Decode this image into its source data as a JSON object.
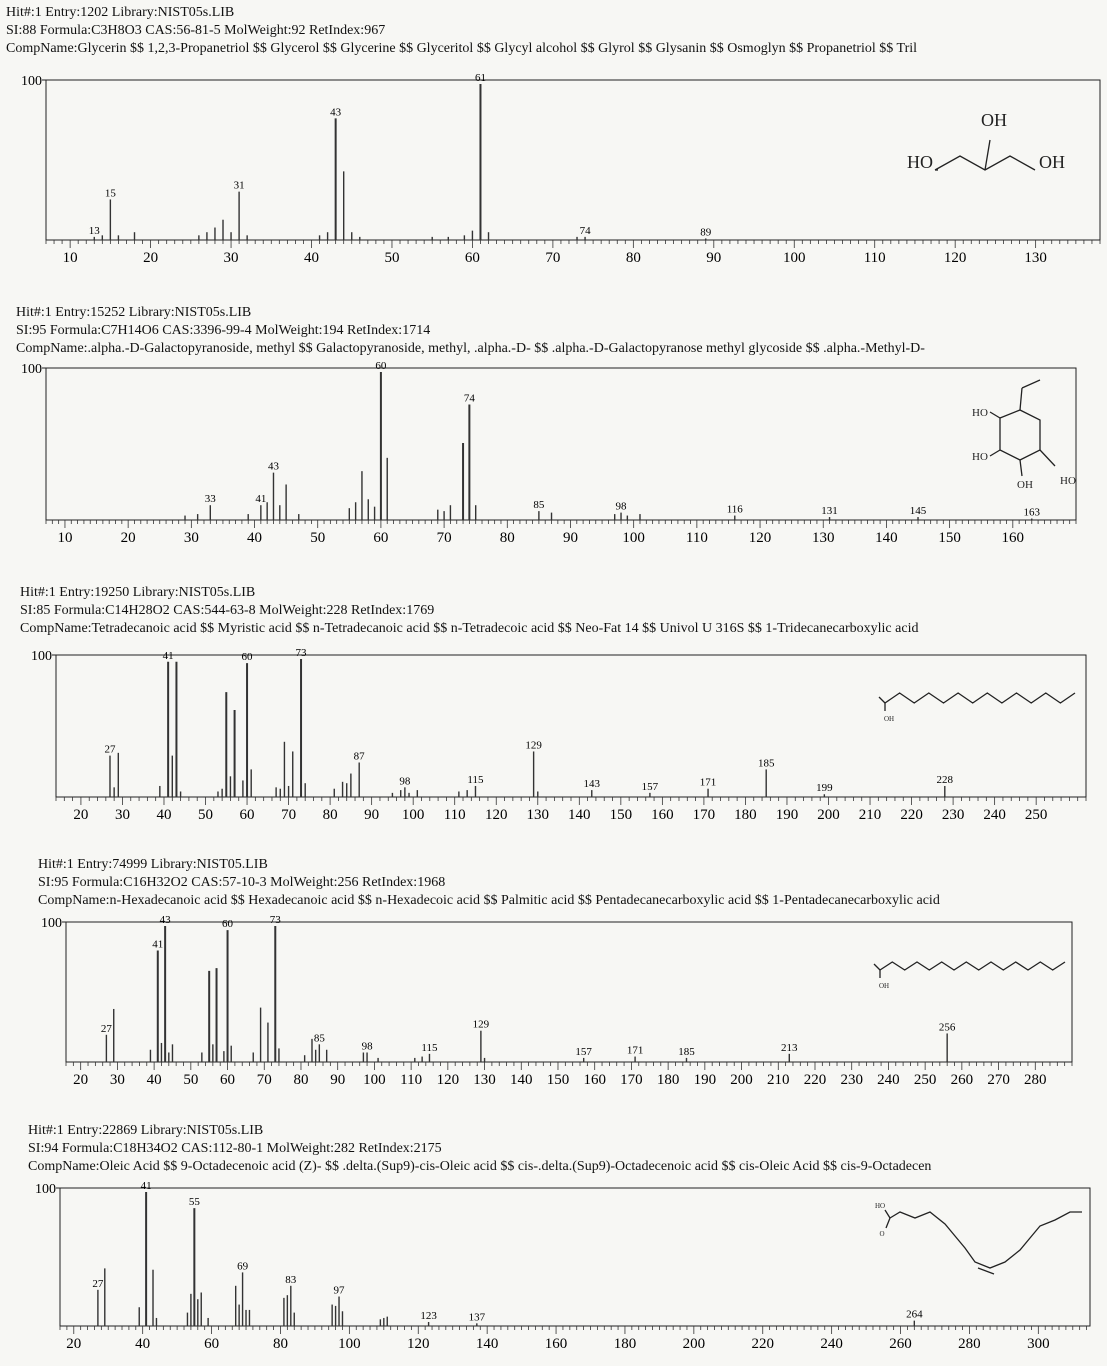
{
  "chart_data": [
    {
      "type": "bar",
      "header": {
        "line1": "Hit#:1  Entry:1202  Library:NIST05s.LIB",
        "line2": "SI:88  Formula:C3H8O3  CAS:56-81-5  MolWeight:92  RetIndex:967",
        "line3": "CompName:Glycerin $$ 1,2,3-Propanetriol $$ Glycerol $$ Glycerine $$ Glyceritol $$ Glycyl alcohol $$ Glyrol $$ Glysanin $$ Osmoglyn $$ Propanetriol $$ Tril"
      },
      "ylabel": "100",
      "xlim": [
        7,
        138
      ],
      "ylim": [
        0,
        100
      ],
      "x_ticks": [
        10,
        20,
        30,
        40,
        50,
        60,
        70,
        80,
        90,
        100,
        110,
        120,
        130
      ],
      "peaks": [
        [
          13,
          2
        ],
        [
          14,
          3
        ],
        [
          15,
          26
        ],
        [
          16,
          3
        ],
        [
          18,
          5
        ],
        [
          26,
          3
        ],
        [
          27,
          5
        ],
        [
          28,
          8
        ],
        [
          29,
          13
        ],
        [
          30,
          5
        ],
        [
          31,
          31
        ],
        [
          32,
          3
        ],
        [
          41,
          3
        ],
        [
          42,
          5
        ],
        [
          43,
          78
        ],
        [
          44,
          44
        ],
        [
          45,
          5
        ],
        [
          46,
          2
        ],
        [
          55,
          2
        ],
        [
          57,
          2
        ],
        [
          59,
          3
        ],
        [
          60,
          6
        ],
        [
          61,
          100
        ],
        [
          62,
          5
        ],
        [
          73,
          2
        ],
        [
          74,
          2
        ],
        [
          89,
          1
        ]
      ],
      "peak_labels": [
        [
          13,
          "13"
        ],
        [
          15,
          "15"
        ],
        [
          31,
          "31"
        ],
        [
          43,
          "43"
        ],
        [
          61,
          "61"
        ],
        [
          74,
          "74"
        ],
        [
          89,
          "89"
        ]
      ],
      "structure": {
        "kind": "glycerol",
        "labels": [
          "OH",
          "HO",
          "OH"
        ]
      }
    },
    {
      "type": "bar",
      "header": {
        "line1": "Hit#:1  Entry:15252  Library:NIST05s.LIB",
        "line2": "SI:95  Formula:C7H14O6  CAS:3396-99-4  MolWeight:194  RetIndex:1714",
        "line3": "CompName:.alpha.-D-Galactopyranoside, methyl $$ Galactopyranoside, methyl, .alpha.-D- $$ .alpha.-D-Galactopyranose methyl glycoside $$ .alpha.-Methyl-D-"
      },
      "ylabel": "100",
      "xlim": [
        7,
        170
      ],
      "ylim": [
        0,
        100
      ],
      "x_ticks": [
        10,
        20,
        30,
        40,
        50,
        60,
        70,
        80,
        90,
        100,
        110,
        120,
        130,
        140,
        150,
        160
      ],
      "peaks": [
        [
          29,
          3
        ],
        [
          31,
          4
        ],
        [
          33,
          10
        ],
        [
          39,
          4
        ],
        [
          41,
          10
        ],
        [
          42,
          12
        ],
        [
          43,
          32
        ],
        [
          44,
          10
        ],
        [
          45,
          24
        ],
        [
          47,
          4
        ],
        [
          55,
          8
        ],
        [
          56,
          12
        ],
        [
          57,
          33
        ],
        [
          58,
          14
        ],
        [
          59,
          9
        ],
        [
          60,
          100
        ],
        [
          61,
          42
        ],
        [
          69,
          7
        ],
        [
          70,
          6
        ],
        [
          71,
          10
        ],
        [
          73,
          52
        ],
        [
          74,
          78
        ],
        [
          75,
          10
        ],
        [
          85,
          6
        ],
        [
          87,
          5
        ],
        [
          97,
          4
        ],
        [
          98,
          5
        ],
        [
          99,
          3
        ],
        [
          101,
          4
        ],
        [
          116,
          3
        ],
        [
          131,
          2
        ],
        [
          145,
          2
        ],
        [
          163,
          1
        ]
      ],
      "peak_labels": [
        [
          33,
          "33"
        ],
        [
          41,
          "41"
        ],
        [
          43,
          "43"
        ],
        [
          60,
          "60"
        ],
        [
          74,
          "74"
        ],
        [
          85,
          "85"
        ],
        [
          98,
          "98"
        ],
        [
          116,
          "116"
        ],
        [
          131,
          "131"
        ],
        [
          145,
          "145"
        ],
        [
          163,
          "163"
        ]
      ],
      "structure": {
        "kind": "galactopyranoside",
        "labels": [
          "HO",
          "HO",
          "OH",
          "HO"
        ]
      }
    },
    {
      "type": "bar",
      "header": {
        "line1": "Hit#:1  Entry:19250  Library:NIST05s.LIB",
        "line2": "SI:85  Formula:C14H28O2  CAS:544-63-8  MolWeight:228  RetIndex:1769",
        "line3": "CompName:Tetradecanoic acid $$ Myristic acid $$ n-Tetradecanoic acid $$ n-Tetradecoic acid $$ Neo-Fat 14 $$ Univol U 316S $$ 1-Tridecanecarboxylic acid"
      },
      "ylabel": "100",
      "xlim": [
        14,
        262
      ],
      "ylim": [
        0,
        100
      ],
      "x_ticks": [
        20,
        30,
        40,
        50,
        60,
        70,
        80,
        90,
        100,
        110,
        120,
        130,
        140,
        150,
        160,
        170,
        180,
        190,
        200,
        210,
        220,
        230,
        240,
        250
      ],
      "peaks": [
        [
          27,
          30
        ],
        [
          28,
          7
        ],
        [
          29,
          32
        ],
        [
          39,
          8
        ],
        [
          41,
          98
        ],
        [
          42,
          30
        ],
        [
          43,
          98
        ],
        [
          44,
          4
        ],
        [
          53,
          4
        ],
        [
          54,
          6
        ],
        [
          55,
          76
        ],
        [
          56,
          15
        ],
        [
          57,
          63
        ],
        [
          59,
          12
        ],
        [
          60,
          97
        ],
        [
          61,
          20
        ],
        [
          67,
          7
        ],
        [
          68,
          6
        ],
        [
          69,
          40
        ],
        [
          70,
          8
        ],
        [
          71,
          33
        ],
        [
          73,
          100
        ],
        [
          74,
          10
        ],
        [
          81,
          6
        ],
        [
          83,
          11
        ],
        [
          84,
          10
        ],
        [
          85,
          17
        ],
        [
          87,
          25
        ],
        [
          95,
          3
        ],
        [
          97,
          5
        ],
        [
          98,
          7
        ],
        [
          99,
          3
        ],
        [
          101,
          5
        ],
        [
          111,
          4
        ],
        [
          113,
          5
        ],
        [
          115,
          8
        ],
        [
          129,
          33
        ],
        [
          130,
          4
        ],
        [
          143,
          5
        ],
        [
          157,
          3
        ],
        [
          171,
          6
        ],
        [
          185,
          20
        ],
        [
          199,
          2
        ],
        [
          228,
          8
        ]
      ],
      "peak_labels": [
        [
          27,
          "27"
        ],
        [
          41,
          "41"
        ],
        [
          60,
          "60"
        ],
        [
          73,
          "73"
        ],
        [
          87,
          "87"
        ],
        [
          98,
          "98"
        ],
        [
          115,
          "115"
        ],
        [
          129,
          "129"
        ],
        [
          143,
          "143"
        ],
        [
          157,
          "157"
        ],
        [
          171,
          "171"
        ],
        [
          185,
          "185"
        ],
        [
          199,
          "199"
        ],
        [
          228,
          "228"
        ]
      ],
      "structure": {
        "kind": "chain",
        "zigzags": 13,
        "labels": [
          "OH"
        ]
      }
    },
    {
      "type": "bar",
      "header": {
        "line1": "Hit#:1  Entry:74999  Library:NIST05.LIB",
        "line2": "SI:95  Formula:C16H32O2  CAS:57-10-3  MolWeight:256  RetIndex:1968",
        "line3": "CompName:n-Hexadecanoic acid $$ Hexadecanoic acid $$ n-Hexadecoic acid $$ Palmitic acid $$ Pentadecanecarboxylic acid $$ 1-Pentadecanecarboxylic acid"
      },
      "ylabel": "100",
      "xlim": [
        16,
        290
      ],
      "ylim": [
        0,
        100
      ],
      "x_ticks": [
        20,
        30,
        40,
        50,
        60,
        70,
        80,
        90,
        100,
        110,
        120,
        130,
        140,
        150,
        160,
        170,
        180,
        190,
        200,
        210,
        220,
        230,
        240,
        250,
        260,
        270,
        280
      ],
      "peaks": [
        [
          27,
          20
        ],
        [
          29,
          39
        ],
        [
          39,
          9
        ],
        [
          41,
          82
        ],
        [
          42,
          14
        ],
        [
          43,
          100
        ],
        [
          44,
          7
        ],
        [
          45,
          13
        ],
        [
          53,
          7
        ],
        [
          55,
          67
        ],
        [
          56,
          13
        ],
        [
          57,
          69
        ],
        [
          59,
          8
        ],
        [
          60,
          97
        ],
        [
          61,
          12
        ],
        [
          67,
          7
        ],
        [
          69,
          40
        ],
        [
          71,
          29
        ],
        [
          73,
          100
        ],
        [
          74,
          10
        ],
        [
          81,
          5
        ],
        [
          83,
          17
        ],
        [
          84,
          9
        ],
        [
          85,
          13
        ],
        [
          87,
          9
        ],
        [
          97,
          7
        ],
        [
          98,
          7
        ],
        [
          101,
          3
        ],
        [
          111,
          3
        ],
        [
          113,
          4
        ],
        [
          115,
          6
        ],
        [
          129,
          23
        ],
        [
          130,
          3
        ],
        [
          157,
          3
        ],
        [
          171,
          4
        ],
        [
          185,
          3
        ],
        [
          213,
          6
        ],
        [
          256,
          21
        ]
      ],
      "peak_labels": [
        [
          27,
          "27"
        ],
        [
          41,
          "41"
        ],
        [
          43,
          "43"
        ],
        [
          60,
          "60"
        ],
        [
          73,
          "73"
        ],
        [
          85,
          "85"
        ],
        [
          98,
          "98"
        ],
        [
          115,
          "115"
        ],
        [
          129,
          "129"
        ],
        [
          157,
          "157"
        ],
        [
          171,
          "171"
        ],
        [
          185,
          "185"
        ],
        [
          213,
          "213"
        ],
        [
          256,
          "256"
        ]
      ],
      "structure": {
        "kind": "chain",
        "zigzags": 15,
        "labels": [
          "OH"
        ]
      }
    },
    {
      "type": "bar",
      "header": {
        "line1": "Hit#:1  Entry:22869  Library:NIST05s.LIB",
        "line2": "SI:94  Formula:C18H34O2  CAS:112-80-1  MolWeight:282  RetIndex:2175",
        "line3": "CompName:Oleic Acid $$ 9-Octadecenoic acid (Z)- $$ .delta.(Sup9)-cis-Oleic acid $$ cis-.delta.(Sup9)-Octadecenoic acid $$ cis-Oleic Acid $$ cis-9-Octadecen"
      },
      "ylabel": "100",
      "xlim": [
        16,
        315
      ],
      "ylim": [
        0,
        100
      ],
      "x_ticks": [
        20,
        40,
        60,
        80,
        100,
        120,
        140,
        160,
        180,
        200,
        220,
        240,
        260,
        280,
        300
      ],
      "peaks": [
        [
          27,
          27
        ],
        [
          29,
          43
        ],
        [
          39,
          14
        ],
        [
          41,
          100
        ],
        [
          43,
          42
        ],
        [
          44,
          6
        ],
        [
          53,
          10
        ],
        [
          54,
          24
        ],
        [
          55,
          88
        ],
        [
          56,
          20
        ],
        [
          57,
          25
        ],
        [
          59,
          6
        ],
        [
          67,
          30
        ],
        [
          68,
          16
        ],
        [
          69,
          40
        ],
        [
          70,
          12
        ],
        [
          71,
          12
        ],
        [
          81,
          21
        ],
        [
          82,
          23
        ],
        [
          83,
          30
        ],
        [
          84,
          10
        ],
        [
          95,
          16
        ],
        [
          96,
          15
        ],
        [
          97,
          22
        ],
        [
          98,
          11
        ],
        [
          109,
          5
        ],
        [
          110,
          6
        ],
        [
          111,
          7
        ],
        [
          123,
          3
        ],
        [
          137,
          2
        ],
        [
          264,
          4
        ]
      ],
      "peak_labels": [
        [
          27,
          "27"
        ],
        [
          41,
          "41"
        ],
        [
          55,
          "55"
        ],
        [
          69,
          "69"
        ],
        [
          83,
          "83"
        ],
        [
          97,
          "97"
        ],
        [
          123,
          "123"
        ],
        [
          137,
          "137"
        ],
        [
          264,
          "264"
        ]
      ],
      "structure": {
        "kind": "oleic",
        "labels": [
          "HO",
          "O"
        ]
      }
    }
  ]
}
